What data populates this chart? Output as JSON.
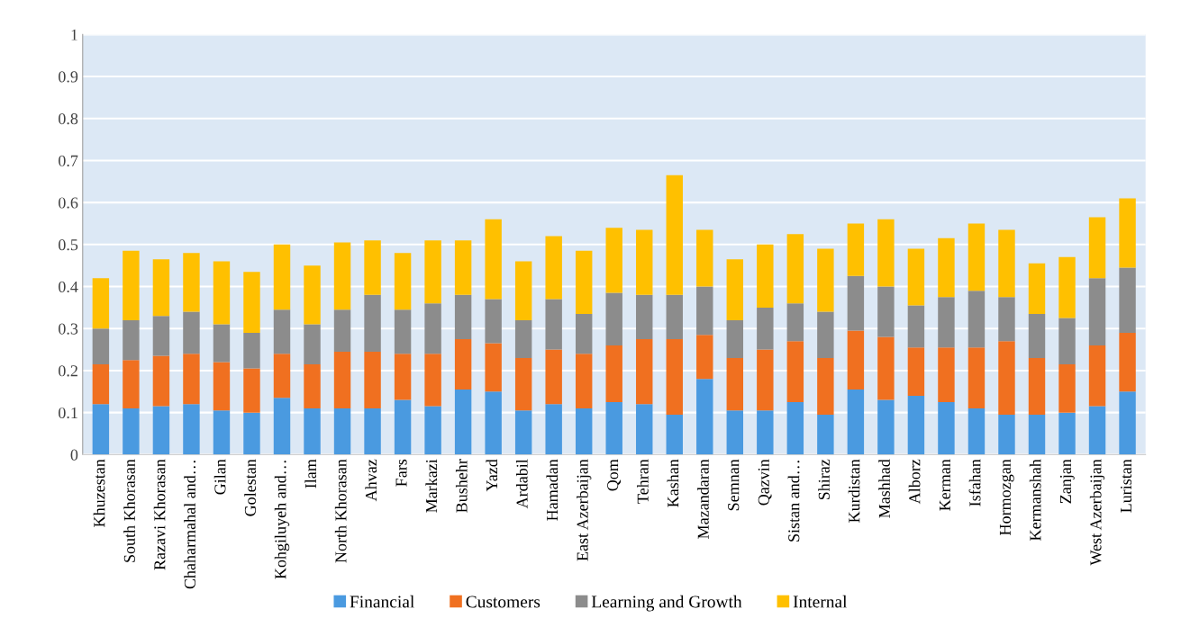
{
  "chart_data": {
    "type": "bar",
    "stacked": true,
    "categories": [
      "Khuzestan",
      "South Khorasan",
      "Razavi Khorasan",
      "Chaharmahal and…",
      "Gilan",
      "Golestan",
      "Kohgiluyeh and…",
      "Ilam",
      "North Khorasan",
      "Ahvaz",
      "Fars",
      "Markazi",
      "Bushehr",
      "Yazd",
      "Ardabil",
      "Hamadan",
      "East Azerbaijan",
      "Qom",
      "Tehran",
      "Kashan",
      "Mazandaran",
      "Semnan",
      "Qazvin",
      "Sistan and…",
      "Shiraz",
      "Kurdistan",
      "Mashhad",
      "Alborz",
      "Kerman",
      "Isfahan",
      "Hormozgan",
      "Kermanshah",
      "Zanjan",
      "West Azerbaijan",
      "Luristan"
    ],
    "series": [
      {
        "name": "Financial",
        "color": "#4a9ae0",
        "values": [
          0.12,
          0.11,
          0.115,
          0.12,
          0.105,
          0.1,
          0.135,
          0.11,
          0.11,
          0.11,
          0.13,
          0.115,
          0.155,
          0.15,
          0.105,
          0.12,
          0.11,
          0.125,
          0.12,
          0.095,
          0.18,
          0.105,
          0.105,
          0.125,
          0.095,
          0.155,
          0.13,
          0.14,
          0.125,
          0.11,
          0.095,
          0.095,
          0.1,
          0.115,
          0.15
        ]
      },
      {
        "name": "Customers",
        "color": "#f07020",
        "values": [
          0.095,
          0.115,
          0.12,
          0.12,
          0.115,
          0.105,
          0.105,
          0.105,
          0.135,
          0.135,
          0.11,
          0.125,
          0.12,
          0.115,
          0.125,
          0.13,
          0.13,
          0.135,
          0.155,
          0.18,
          0.105,
          0.125,
          0.145,
          0.145,
          0.135,
          0.14,
          0.15,
          0.115,
          0.13,
          0.145,
          0.175,
          0.135,
          0.115,
          0.145,
          0.14
        ]
      },
      {
        "name": "Learning and Growth",
        "color": "#8c8c8c",
        "values": [
          0.085,
          0.095,
          0.095,
          0.1,
          0.09,
          0.085,
          0.105,
          0.095,
          0.1,
          0.135,
          0.105,
          0.12,
          0.105,
          0.105,
          0.09,
          0.12,
          0.095,
          0.125,
          0.105,
          0.105,
          0.115,
          0.09,
          0.1,
          0.09,
          0.11,
          0.13,
          0.12,
          0.1,
          0.12,
          0.135,
          0.105,
          0.105,
          0.11,
          0.16,
          0.155
        ]
      },
      {
        "name": "Internal",
        "color": "#ffc000",
        "values": [
          0.12,
          0.165,
          0.135,
          0.14,
          0.15,
          0.145,
          0.155,
          0.14,
          0.16,
          0.13,
          0.135,
          0.15,
          0.13,
          0.19,
          0.14,
          0.15,
          0.15,
          0.155,
          0.155,
          0.285,
          0.135,
          0.145,
          0.15,
          0.165,
          0.15,
          0.125,
          0.16,
          0.135,
          0.14,
          0.16,
          0.16,
          0.12,
          0.145,
          0.145,
          0.165
        ]
      }
    ],
    "ylim": [
      0,
      1
    ],
    "yticks": [
      0,
      0.1,
      0.2,
      0.3,
      0.4,
      0.5,
      0.6,
      0.7,
      0.8,
      0.9,
      1
    ],
    "grid": "y",
    "legend": "bottom"
  }
}
